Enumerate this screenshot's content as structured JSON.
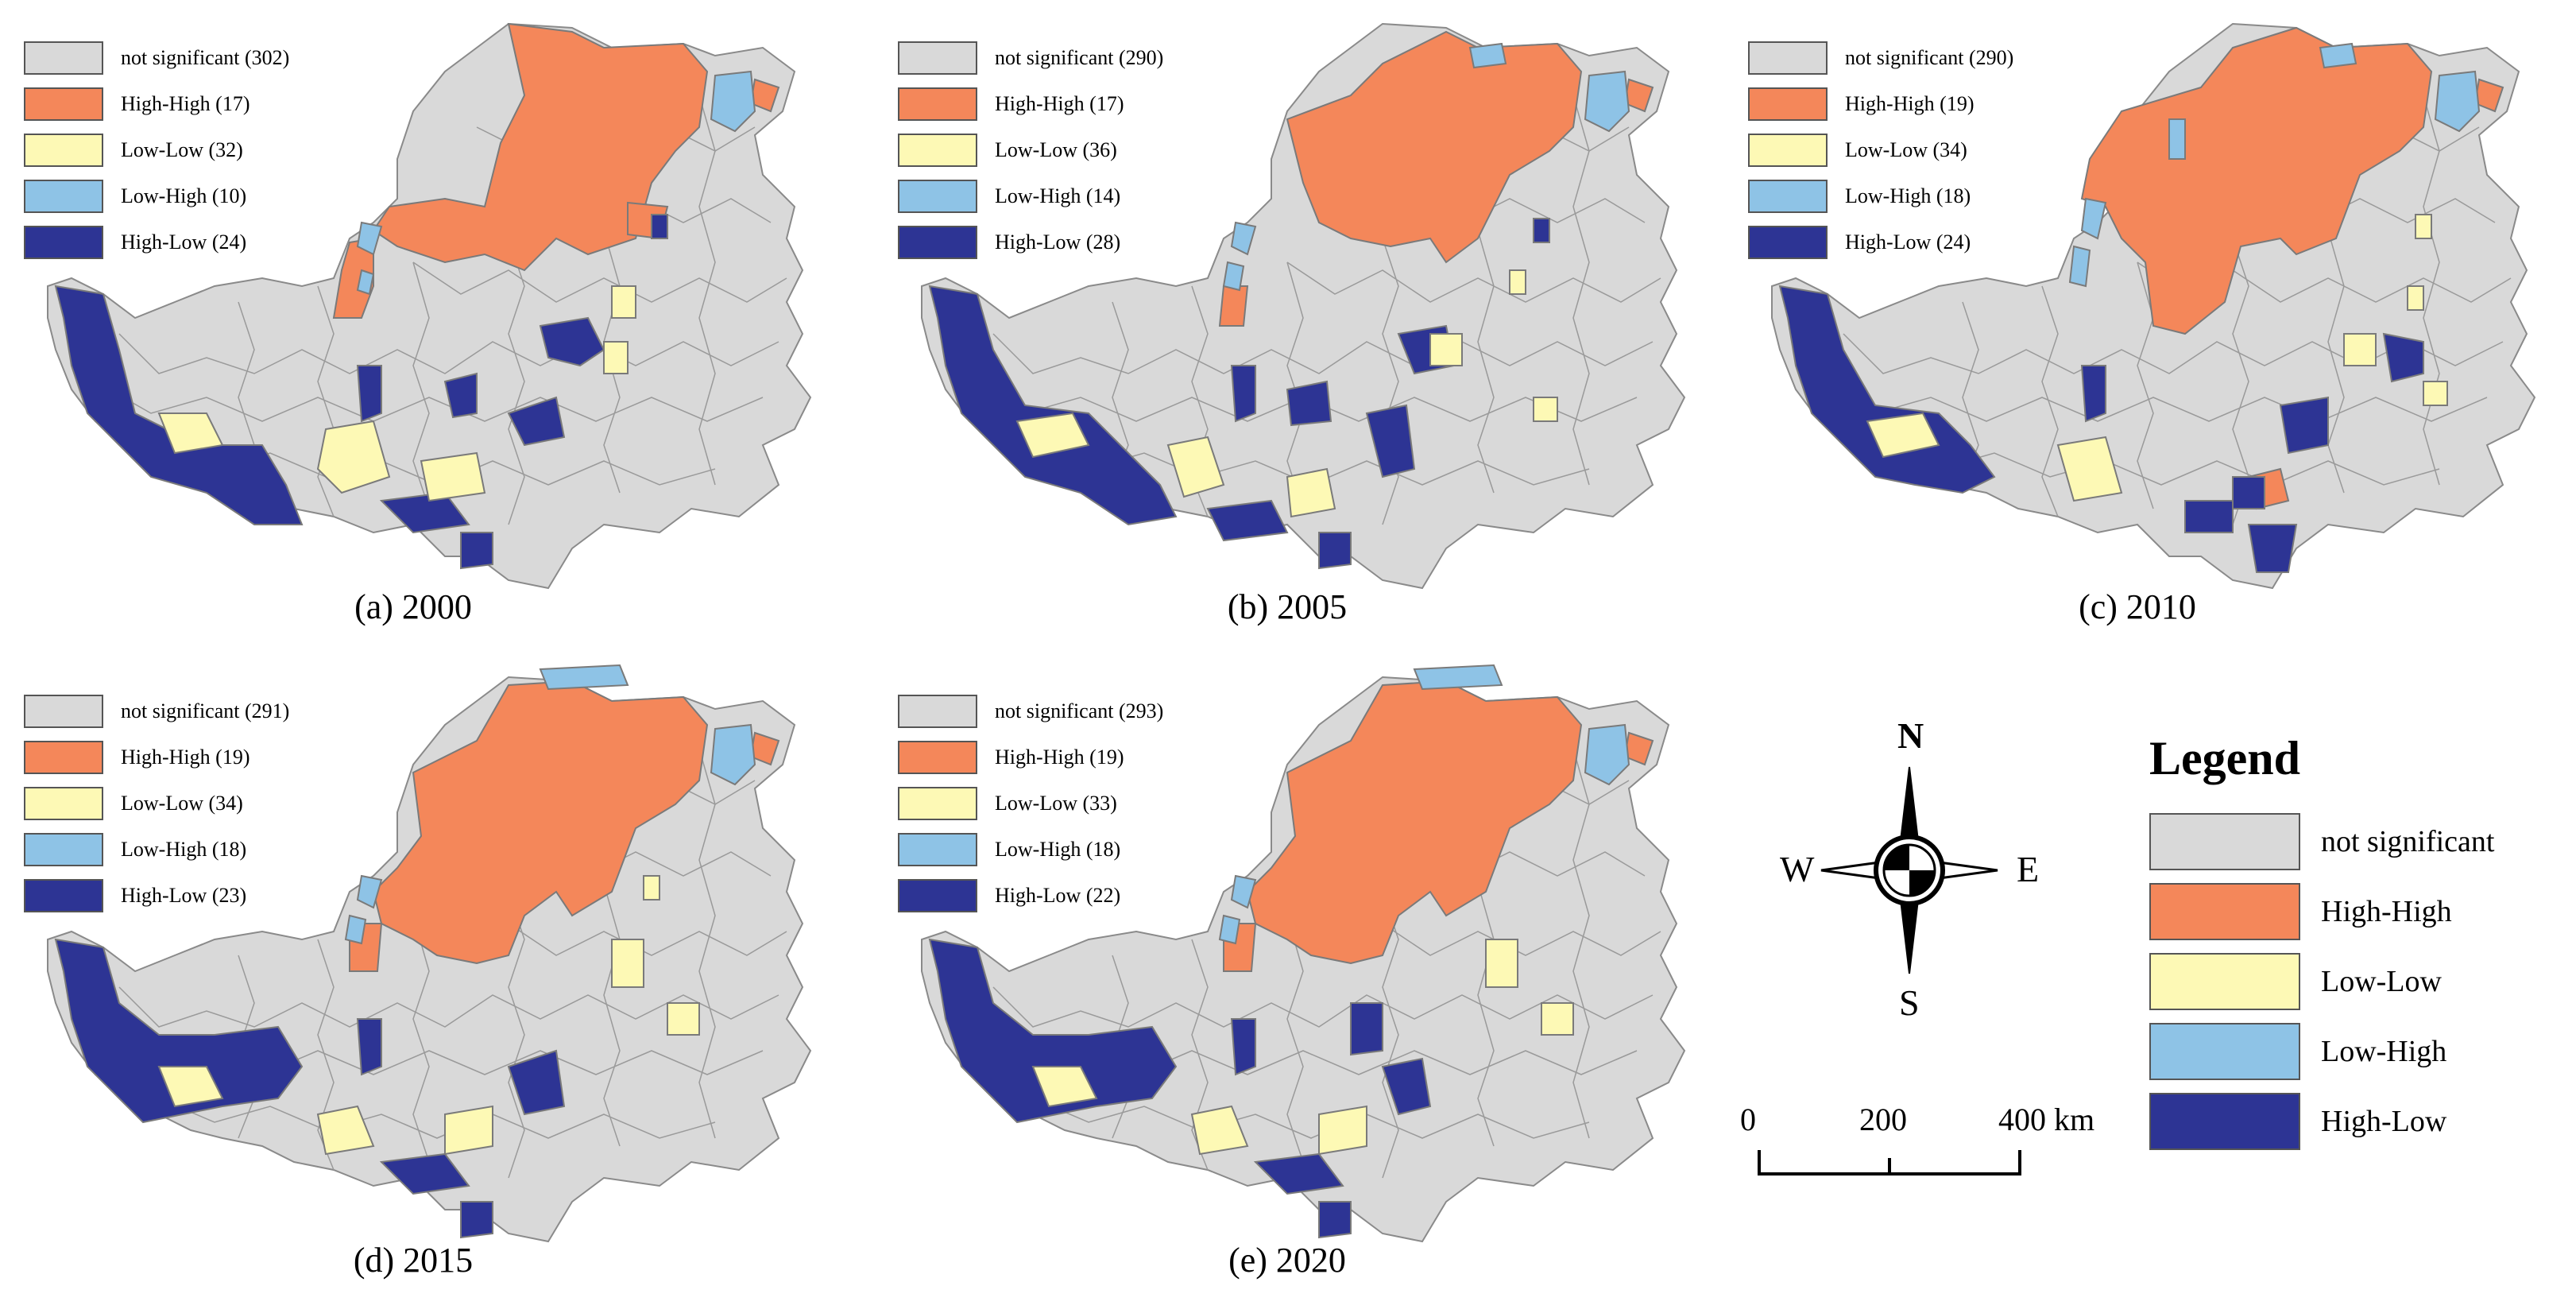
{
  "colors": {
    "not_significant": "#d9d9d9",
    "high_high": "#f4875a",
    "low_low": "#fdf9b5",
    "low_high": "#8ec3e6",
    "high_low": "#2d3494",
    "boundary": "#7a7a7a"
  },
  "panels": [
    {
      "caption": "(a) 2000",
      "legend": [
        "not significant (302)",
        "High-High (17)",
        "Low-Low (32)",
        "Low-High (10)",
        "High-Low (24)"
      ]
    },
    {
      "caption": "(b) 2005",
      "legend": [
        "not significant (290)",
        "High-High (17)",
        "Low-Low (36)",
        "Low-High (14)",
        "High-Low (28)"
      ]
    },
    {
      "caption": "(c) 2010",
      "legend": [
        "not significant (290)",
        "High-High (19)",
        "Low-Low (34)",
        "Low-High (18)",
        "High-Low (24)"
      ]
    },
    {
      "caption": "(d) 2015",
      "legend": [
        "not significant (291)",
        "High-High (19)",
        "Low-Low (34)",
        "Low-High (18)",
        "High-Low (23)"
      ]
    },
    {
      "caption": "(e) 2020",
      "legend": [
        "not significant (293)",
        "High-High (19)",
        "Low-Low (33)",
        "Low-High (18)",
        "High-Low (22)"
      ]
    }
  ],
  "compass": {
    "north": "N",
    "south": "S",
    "east": "E",
    "west": "W"
  },
  "scalebar": {
    "labels": [
      "0",
      "200",
      "400 km"
    ]
  },
  "legend": {
    "title": "Legend",
    "items": [
      "not significant",
      "High-High",
      "Low-Low",
      "Low-High",
      "High-Low"
    ]
  }
}
